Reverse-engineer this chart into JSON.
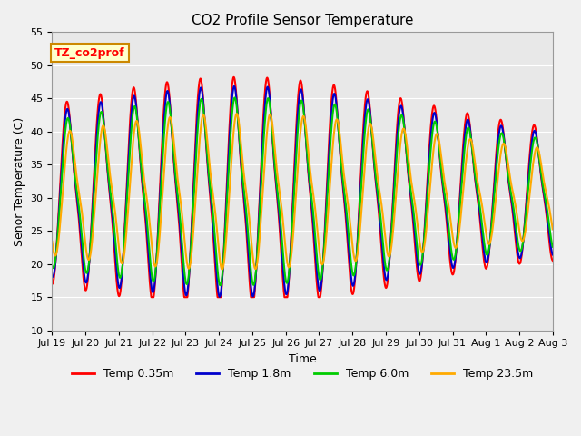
{
  "title": "CO2 Profile Sensor Temperature",
  "xlabel": "Time",
  "ylabel": "Senor Temperature (C)",
  "ylim": [
    10,
    55
  ],
  "xlim": [
    0,
    15
  ],
  "fig_bg": "#f0f0f0",
  "plot_bg": "#e8e8e8",
  "series": {
    "Temp 0.35m": {
      "color": "#ff0000",
      "lw": 1.5,
      "phase_lag": 0.0,
      "amp_scale": 1.0
    },
    "Temp 1.8m": {
      "color": "#0000cc",
      "lw": 1.5,
      "phase_lag": 0.08,
      "amp_scale": 0.92
    },
    "Temp 6.0m": {
      "color": "#00cc00",
      "lw": 1.5,
      "phase_lag": 0.18,
      "amp_scale": 0.82
    },
    "Temp 23.5m": {
      "color": "#ffaa00",
      "lw": 1.5,
      "phase_lag": 0.55,
      "amp_scale": 0.68
    }
  },
  "xtick_labels": [
    "Jul 19",
    "Jul 20",
    "Jul 21",
    "Jul 22",
    "Jul 23",
    "Jul 24",
    "Jul 25",
    "Jul 26",
    "Jul 27",
    "Jul 28",
    "Jul 29",
    "Jul 30",
    "Jul 31",
    "Aug 1",
    "Aug 2",
    "Aug 3"
  ],
  "ytick_values": [
    10,
    15,
    20,
    25,
    30,
    35,
    40,
    45,
    50,
    55
  ],
  "annotation": {
    "text": "TZ_co2prof",
    "facecolor": "#ffffcc",
    "edgecolor": "#cc8800"
  },
  "grid_color": "white",
  "tick_fontsize": 8,
  "label_fontsize": 9,
  "title_fontsize": 11
}
